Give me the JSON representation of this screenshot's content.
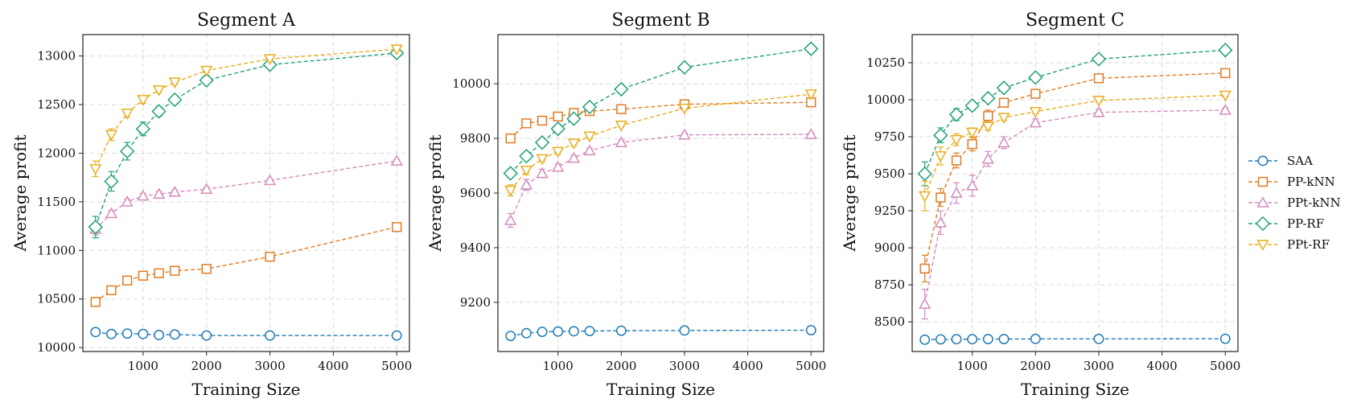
{
  "chart_data": [
    {
      "type": "line",
      "title": "Segment A",
      "xlabel": "Training Size",
      "ylabel": "Average profit",
      "xlim": [
        50,
        5200
      ],
      "ylim": [
        9960,
        13220
      ],
      "xticks": [
        1000,
        2000,
        3000,
        4000,
        5000
      ],
      "yticks": [
        10000,
        10500,
        11000,
        11500,
        12000,
        12500,
        13000
      ],
      "grid": true,
      "x": [
        250,
        500,
        750,
        1000,
        1250,
        1500,
        2000,
        3000,
        5000
      ],
      "series": [
        {
          "name": "SAA",
          "values": [
            10160,
            10140,
            10145,
            10140,
            10130,
            10135,
            10125,
            10125,
            10125
          ],
          "err": [
            30,
            20,
            20,
            20,
            20,
            15,
            15,
            15,
            10
          ]
        },
        {
          "name": "PP-kNN",
          "values": [
            10470,
            10590,
            10690,
            10740,
            10765,
            10790,
            10810,
            10935,
            11240
          ],
          "err": [
            30,
            25,
            20,
            20,
            20,
            20,
            15,
            15,
            15
          ]
        },
        {
          "name": "PPt-kNN",
          "values": [
            11220,
            11380,
            11500,
            11560,
            11580,
            11600,
            11630,
            11720,
            11920
          ],
          "err": [
            60,
            30,
            25,
            25,
            25,
            20,
            20,
            15,
            15
          ]
        },
        {
          "name": "PP-RF",
          "values": [
            11240,
            11710,
            12020,
            12250,
            12430,
            12550,
            12750,
            12910,
            13030
          ],
          "err": [
            110,
            100,
            90,
            70,
            50,
            40,
            30,
            20,
            15
          ]
        },
        {
          "name": "PPt-RF",
          "values": [
            11840,
            12190,
            12410,
            12550,
            12650,
            12730,
            12850,
            12970,
            13070
          ],
          "err": [
            80,
            60,
            40,
            35,
            25,
            20,
            20,
            15,
            15
          ]
        }
      ]
    },
    {
      "type": "line",
      "title": "Segment B",
      "xlabel": "Training Size",
      "ylabel": "Average profit",
      "xlim": [
        50,
        5200
      ],
      "ylim": [
        9020,
        10180
      ],
      "xticks": [
        1000,
        2000,
        3000,
        4000,
        5000
      ],
      "yticks": [
        9200,
        9400,
        9600,
        9800,
        10000
      ],
      "grid": true,
      "x": [
        250,
        500,
        750,
        1000,
        1250,
        1500,
        2000,
        3000,
        5000
      ],
      "series": [
        {
          "name": "SAA",
          "values": [
            9077,
            9087,
            9092,
            9093,
            9094,
            9095,
            9096,
            9097,
            9098
          ],
          "err": [
            5,
            5,
            5,
            4,
            4,
            4,
            4,
            3,
            3
          ]
        },
        {
          "name": "PP-kNN",
          "values": [
            9800,
            9855,
            9865,
            9880,
            9893,
            9900,
            9907,
            9925,
            9932
          ],
          "err": [
            12,
            10,
            10,
            8,
            8,
            8,
            6,
            6,
            5
          ]
        },
        {
          "name": "PPt-kNN",
          "values": [
            9500,
            9630,
            9672,
            9695,
            9728,
            9755,
            9785,
            9813,
            9815
          ],
          "err": [
            25,
            20,
            15,
            12,
            10,
            10,
            8,
            6,
            5
          ]
        },
        {
          "name": "PP-RF",
          "values": [
            9672,
            9735,
            9785,
            9835,
            9872,
            9915,
            9980,
            10060,
            10128
          ],
          "err": [
            15,
            12,
            10,
            10,
            10,
            10,
            8,
            8,
            6
          ]
        },
        {
          "name": "PPt-RF",
          "values": [
            9610,
            9683,
            9725,
            9752,
            9782,
            9808,
            9848,
            9910,
            9962
          ],
          "err": [
            20,
            15,
            10,
            10,
            8,
            8,
            6,
            6,
            5
          ]
        }
      ]
    },
    {
      "type": "line",
      "title": "Segment C",
      "xlabel": "Training Size",
      "ylabel": "Average profit",
      "xlim": [
        50,
        5200
      ],
      "ylim": [
        8300,
        10440
      ],
      "xticks": [
        1000,
        2000,
        3000,
        4000,
        5000
      ],
      "yticks": [
        8500,
        8750,
        9000,
        9250,
        9500,
        9750,
        10000,
        10250
      ],
      "grid": true,
      "x": [
        250,
        500,
        750,
        1000,
        1250,
        1500,
        2000,
        3000,
        5000
      ],
      "series": [
        {
          "name": "SAA",
          "values": [
            8380,
            8382,
            8383,
            8383,
            8384,
            8384,
            8385,
            8385,
            8386
          ],
          "err": [
            5,
            5,
            4,
            4,
            4,
            4,
            4,
            3,
            3
          ]
        },
        {
          "name": "PP-kNN",
          "values": [
            8860,
            9340,
            9590,
            9700,
            9890,
            9980,
            10040,
            10145,
            10180
          ],
          "err": [
            90,
            60,
            50,
            45,
            40,
            25,
            20,
            15,
            12
          ]
        },
        {
          "name": "PPt-kNN",
          "values": [
            8620,
            9170,
            9370,
            9420,
            9600,
            9710,
            9845,
            9915,
            9930
          ],
          "err": [
            100,
            80,
            70,
            70,
            50,
            40,
            25,
            20,
            15
          ]
        },
        {
          "name": "PP-RF",
          "values": [
            9500,
            9760,
            9900,
            9960,
            10010,
            10080,
            10150,
            10275,
            10335
          ],
          "err": [
            80,
            50,
            40,
            30,
            20,
            15,
            15,
            12,
            10
          ]
        },
        {
          "name": "PPt-RF",
          "values": [
            9350,
            9620,
            9730,
            9780,
            9820,
            9880,
            9920,
            9995,
            10030
          ],
          "err": [
            100,
            60,
            40,
            30,
            25,
            20,
            15,
            12,
            10
          ]
        }
      ]
    }
  ],
  "legend": {
    "placement": "right",
    "entries": [
      {
        "name": "SAA",
        "color": "#1f7bb4",
        "marker": "circle"
      },
      {
        "name": "PP-kNN",
        "color": "#e07b22",
        "marker": "square"
      },
      {
        "name": "PPt-kNN",
        "color": "#d48bbd",
        "marker": "triangle-up"
      },
      {
        "name": "PP-RF",
        "color": "#1fa07a",
        "marker": "diamond"
      },
      {
        "name": "PPt-RF",
        "color": "#e8ad1c",
        "marker": "triangle-down"
      }
    ]
  }
}
